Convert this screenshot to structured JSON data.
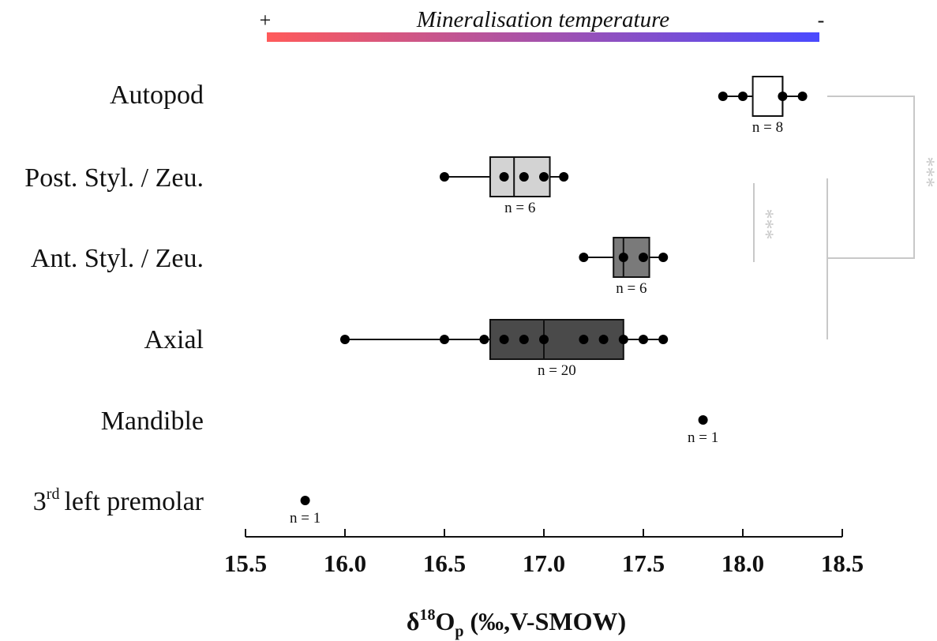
{
  "chart_data": {
    "type": "box",
    "title": "",
    "xlabel": "δ18Op (‰,V-SMOW)",
    "xlabel_parts": {
      "delta": "δ",
      "sup": "18",
      "O": "O",
      "sub": "p",
      "rest": " (‰,V-SMOW)"
    },
    "xlim": [
      15.5,
      18.5
    ],
    "xticks": [
      "15.5",
      "16.0",
      "16.5",
      "17.0",
      "17.5",
      "18.0",
      "18.5"
    ],
    "temperature_bar": {
      "label": "Mineralisation temperature",
      "left_sign": "+",
      "right_sign": "-",
      "color_start": "#ff5a5a",
      "color_end": "#4a4aff"
    },
    "groups": [
      {
        "label": "Autopod",
        "n_label": "n = 8",
        "box_color": "#ffffff",
        "min": 17.9,
        "q1": 18.05,
        "median": 18.2,
        "q3": 18.2,
        "max": 18.3,
        "points": [
          17.9,
          18.0,
          18.2,
          18.3
        ]
      },
      {
        "label": "Post. Styl. / Zeu.",
        "n_label": "n = 6",
        "box_color": "#d3d3d3",
        "min": 16.5,
        "q1": 16.73,
        "median": 16.85,
        "q3": 17.03,
        "max": 17.1,
        "points": [
          16.5,
          16.8,
          16.9,
          17.0,
          17.1
        ]
      },
      {
        "label": "Ant. Styl. / Zeu.",
        "n_label": "n = 6",
        "box_color": "#7a7a7a",
        "min": 17.2,
        "q1": 17.35,
        "median": 17.4,
        "q3": 17.53,
        "max": 17.6,
        "points": [
          17.2,
          17.4,
          17.5,
          17.6
        ]
      },
      {
        "label": "Axial",
        "n_label": "n = 20",
        "box_color": "#4a4a4a",
        "min": 16.0,
        "q1": 16.73,
        "median": 17.0,
        "q3": 17.4,
        "max": 17.6,
        "points": [
          16.0,
          16.5,
          16.7,
          16.8,
          16.9,
          17.0,
          17.2,
          17.3,
          17.4,
          17.5,
          17.6
        ]
      },
      {
        "label": "Mandible",
        "n_label": "n = 1",
        "box_color": null,
        "points": [
          17.8
        ]
      },
      {
        "label": "left premolar",
        "label_prefix": "3",
        "label_sup": "rd",
        "n_label": "n = 1",
        "box_color": null,
        "points": [
          15.8
        ]
      }
    ],
    "significance": [
      {
        "groups": [
          "Post. Styl. / Zeu.",
          "Ant. Styl. / Zeu."
        ],
        "mark": "***"
      },
      {
        "groups": [
          "Autopod",
          "Axial"
        ],
        "mark": "***"
      }
    ]
  }
}
